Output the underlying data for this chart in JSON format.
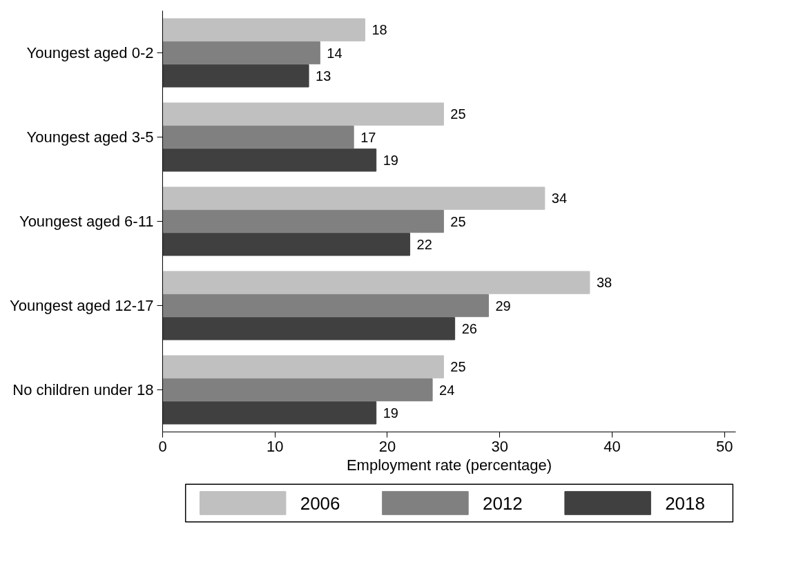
{
  "chart_data": {
    "type": "bar",
    "orientation": "horizontal",
    "categories": [
      "Youngest aged 0-2",
      "Youngest aged 3-5",
      "Youngest aged 6-11",
      "Youngest aged 12-17",
      "No children under 18"
    ],
    "series": [
      {
        "name": "2006",
        "color": "#c0c0c0",
        "values": [
          18,
          25,
          34,
          38,
          25
        ]
      },
      {
        "name": "2012",
        "color": "#808080",
        "values": [
          14,
          17,
          25,
          29,
          24
        ]
      },
      {
        "name": "2018",
        "color": "#404040",
        "values": [
          13,
          19,
          22,
          26,
          19
        ]
      }
    ],
    "xlabel": "Employment rate (percentage)",
    "xlim": [
      0,
      51
    ],
    "xticks": [
      0,
      10,
      20,
      30,
      40,
      50
    ],
    "data_labels": true,
    "grid": false,
    "legend": "bottom"
  }
}
